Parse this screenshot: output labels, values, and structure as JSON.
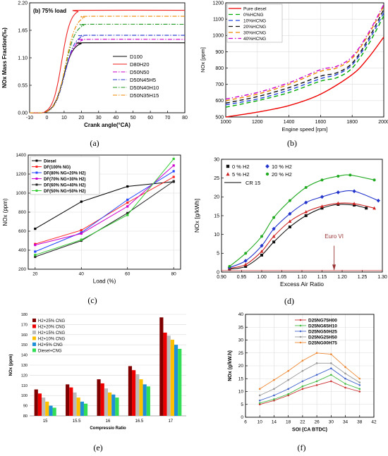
{
  "captions": [
    "(a)",
    "(b)",
    "(c)",
    "(d)",
    "(e)",
    "(f)"
  ],
  "chart_data": [
    {
      "type": "line",
      "title": "(b) 75% load",
      "xlabel": "Crank angle(°CA)",
      "ylabel": "NOx Mass Fraction(‰)",
      "xlim": [
        -10,
        80
      ],
      "ylim": [
        0,
        2.2
      ],
      "xticks": [
        -10,
        0,
        10,
        20,
        30,
        40,
        50,
        60,
        70,
        80
      ],
      "yticks": [
        0.0,
        0.55,
        1.1,
        1.65,
        2.2
      ],
      "legend": "center-right",
      "series": [
        {
          "name": "D100",
          "color": "#000000",
          "dash": "",
          "final": 1.4
        },
        {
          "name": "D80H20",
          "color": "#ee2222",
          "dash": "",
          "final": 2.05
        },
        {
          "name": "D50N50",
          "color": "#cc00cc",
          "dash": "6 2 1.5 2",
          "final": 1.47
        },
        {
          "name": "D50N45H5",
          "color": "#2233cc",
          "dash": "6 2 1.5 2",
          "final": 1.55
        },
        {
          "name": "D50N40H10",
          "color": "#229922",
          "dash": "6 2 1.5 2",
          "final": 1.77
        },
        {
          "name": "D50N35H15",
          "color": "#ee8800",
          "dash": "6 2 1.5 2",
          "final": 1.93
        }
      ]
    },
    {
      "type": "line",
      "xlabel": "Engine speed [rpm]",
      "ylabel": "NOx [ppm]",
      "xlim": [
        1000,
        2000
      ],
      "ylim": [
        500,
        1200
      ],
      "xticks": [
        1000,
        1200,
        1400,
        1600,
        1800,
        2000
      ],
      "yticks": [
        500,
        600,
        700,
        800,
        900,
        1000,
        1100,
        1200
      ],
      "grid": true,
      "legend": "top-left",
      "series": [
        {
          "name": "Pure diesel",
          "color": "#ee0000",
          "dash": "",
          "x": [
            1000,
            1200,
            1400,
            1600,
            1800,
            1900,
            2000
          ],
          "y": [
            500,
            530,
            570,
            640,
            760,
            860,
            990
          ]
        },
        {
          "name": "0%HCNG",
          "color": "#00aa00",
          "dash": "6 4",
          "x": [
            1000,
            1200,
            1400,
            1600,
            1700,
            1800,
            1900,
            2000
          ],
          "y": [
            560,
            600,
            650,
            720,
            740,
            800,
            940,
            1120
          ]
        },
        {
          "name": "10%HCNG",
          "color": "#2244dd",
          "dash": "6 4",
          "x": [
            1000,
            1200,
            1400,
            1600,
            1700,
            1800,
            1900,
            2000
          ],
          "y": [
            575,
            610,
            665,
            735,
            760,
            820,
            960,
            1140
          ]
        },
        {
          "name": "20%HCNG",
          "color": "#111111",
          "dash": "6 4",
          "x": [
            1000,
            1200,
            1400,
            1600,
            1700,
            1800,
            1900,
            2000
          ],
          "y": [
            585,
            625,
            680,
            750,
            770,
            830,
            975,
            1160
          ]
        },
        {
          "name": "30%HCNG",
          "color": "#ee8800",
          "dash": "6 4",
          "x": [
            1000,
            1200,
            1400,
            1600,
            1700,
            1800,
            1900,
            2000
          ],
          "y": [
            600,
            640,
            700,
            780,
            800,
            860,
            1000,
            1180
          ]
        },
        {
          "name": "40%HCNG",
          "color": "#cc00cc",
          "dash": "6 3 1.5 3",
          "x": [
            1000,
            1200,
            1400,
            1600,
            1700,
            1800,
            1900,
            2000
          ],
          "y": [
            610,
            650,
            710,
            790,
            810,
            870,
            1010,
            1190
          ]
        }
      ]
    },
    {
      "type": "line",
      "xlabel": "Load (%)",
      "ylabel": "NOx (ppm)",
      "xlim": [
        17,
        83
      ],
      "ylim": [
        200,
        1400
      ],
      "xticks": [
        20,
        40,
        60,
        80
      ],
      "yticks": [
        200,
        400,
        600,
        800,
        1000,
        1200,
        1400
      ],
      "grid": true,
      "legend": "top-left",
      "series": [
        {
          "name": "Diesel",
          "color": "#000000",
          "x": [
            20,
            40,
            60,
            80
          ],
          "y": [
            625,
            910,
            1070,
            1120
          ]
        },
        {
          "name": "DF(100% NG)",
          "color": "#ff2222",
          "x": [
            20,
            40,
            60,
            80
          ],
          "y": [
            465,
            610,
            900,
            1170
          ]
        },
        {
          "name": "DF(80% NG+20% H2)",
          "color": "#2244ff",
          "x": [
            20,
            40,
            60,
            80
          ],
          "y": [
            385,
            585,
            930,
            1230
          ]
        },
        {
          "name": "DF(70% NG+30% H2)",
          "color": "#cc00cc",
          "x": [
            20,
            40,
            60,
            80
          ],
          "y": [
            455,
            575,
            860,
            1290
          ]
        },
        {
          "name": "DF(60% NG+40% H2)",
          "color": "#222222",
          "x": [
            20,
            40,
            60,
            80
          ],
          "y": [
            330,
            500,
            790,
            1125
          ]
        },
        {
          "name": "DF(50% NG+50% H2)",
          "color": "#33cc33",
          "x": [
            20,
            40,
            60,
            80
          ],
          "y": [
            350,
            510,
            770,
            1360
          ]
        }
      ]
    },
    {
      "type": "line",
      "xlabel": "Excess Air Ratio",
      "ylabel": "NOx [g/kWh]",
      "xlim": [
        0.9,
        1.3
      ],
      "ylim": [
        0,
        30
      ],
      "xticks": [
        0.9,
        0.95,
        1.0,
        1.05,
        1.1,
        1.15,
        1.2,
        1.25,
        1.3
      ],
      "yticks": [
        0,
        5,
        10,
        15,
        20,
        25,
        30
      ],
      "legend": "top-left",
      "annotation": "Euro VI",
      "series": [
        {
          "name": "0 % H2",
          "color": "#111111",
          "marker": "square",
          "x": [
            0.92,
            0.96,
            1.0,
            1.03,
            1.07,
            1.11,
            1.15,
            1.19,
            1.23,
            1.26
          ],
          "y": [
            0.8,
            1.5,
            4.5,
            8.0,
            12.0,
            15.0,
            17.0,
            18.0,
            17.8,
            17.0
          ]
        },
        {
          "name": "5 % H2",
          "color": "#cc2222",
          "marker": "triangle",
          "x": [
            0.92,
            0.96,
            1.0,
            1.03,
            1.07,
            1.11,
            1.15,
            1.19,
            1.23,
            1.28
          ],
          "y": [
            1.0,
            2.0,
            5.5,
            9.5,
            13.5,
            16.0,
            17.5,
            18.3,
            18.2,
            17.0
          ]
        },
        {
          "name": "10 % H2",
          "color": "#2233cc",
          "marker": "diamond",
          "x": [
            0.92,
            0.96,
            1.0,
            1.03,
            1.07,
            1.11,
            1.15,
            1.19,
            1.23,
            1.29
          ],
          "y": [
            1.2,
            3.0,
            7.0,
            11.5,
            15.5,
            18.5,
            20.0,
            21.2,
            21.5,
            19.0
          ]
        },
        {
          "name": "20 % H2",
          "color": "#22aa22",
          "marker": "circle",
          "x": [
            0.92,
            0.96,
            1.0,
            1.03,
            1.07,
            1.11,
            1.15,
            1.19,
            1.22,
            1.28
          ],
          "y": [
            1.5,
            5.0,
            9.5,
            14.5,
            19.0,
            22.5,
            24.5,
            25.5,
            25.8,
            24.5
          ]
        },
        {
          "name": "CR 15",
          "color": "#000000",
          "marker": "none",
          "x": [],
          "y": []
        }
      ]
    },
    {
      "type": "bar",
      "xlabel": "Compressio Ratio",
      "ylabel": "NOx (ppm)",
      "ylim": [
        80,
        180
      ],
      "yticks": [
        80,
        90,
        100,
        110,
        120,
        130,
        140,
        150,
        160,
        170,
        180
      ],
      "grid": true,
      "legend": "top-left",
      "categories": [
        "15",
        "15.5",
        "16",
        "16.5",
        "17"
      ],
      "series": [
        {
          "name": "H2+25% CNG",
          "color": "#800000",
          "values": [
            106,
            111,
            116,
            129,
            177
          ]
        },
        {
          "name": "H2+20% CNG",
          "color": "#ee0000",
          "values": [
            102,
            108,
            112,
            125,
            162
          ]
        },
        {
          "name": "H2+15% CNG",
          "color": "#bbbbbb",
          "values": [
            98,
            103,
            107,
            121,
            159
          ]
        },
        {
          "name": "H2+10% CNG",
          "color": "#ffc000",
          "values": [
            94,
            98,
            103,
            116,
            155
          ]
        },
        {
          "name": "H2+5% CNG",
          "color": "#1f8fd8",
          "values": [
            90,
            94,
            101,
            111,
            150
          ]
        },
        {
          "name": "Diesel+CNG",
          "color": "#33dd55",
          "values": [
            88,
            92,
            98,
            109,
            146
          ]
        }
      ]
    },
    {
      "type": "line",
      "xlabel": "SOI (CA BTDC)",
      "ylabel": "NOx (g/kW.h)",
      "xlim": [
        6,
        42
      ],
      "ylim": [
        0,
        40
      ],
      "xticks": [
        6,
        10,
        14,
        18,
        22,
        26,
        30,
        34,
        38,
        42
      ],
      "yticks": [
        0,
        5,
        10,
        15,
        20,
        25,
        30,
        35,
        40
      ],
      "grid": true,
      "legend": "top-right",
      "series": [
        {
          "name": "D25NG75H00",
          "color": "#cc3333",
          "x": [
            10,
            14,
            18,
            22,
            26,
            30,
            34,
            38
          ],
          "y": [
            5.0,
            6.5,
            8.5,
            11.0,
            12.5,
            14.0,
            11.5,
            10.0
          ]
        },
        {
          "name": "D25NG65H10",
          "color": "#44bb44",
          "x": [
            10,
            14,
            18,
            22,
            26,
            30,
            34,
            38
          ],
          "y": [
            5.5,
            7.0,
            9.0,
            12.0,
            14.0,
            16.5,
            13.0,
            11.0
          ]
        },
        {
          "name": "D25NG50H25",
          "color": "#4466cc",
          "x": [
            10,
            14,
            18,
            22,
            26,
            30,
            34,
            38
          ],
          "y": [
            6.5,
            8.5,
            11.0,
            14.0,
            16.5,
            19.0,
            15.0,
            12.5
          ]
        },
        {
          "name": "D25NG25H50",
          "color": "#999999",
          "x": [
            10,
            14,
            18,
            22,
            26,
            30,
            34,
            38
          ],
          "y": [
            8.5,
            11.0,
            14.5,
            18.0,
            21.0,
            21.0,
            17.0,
            13.5
          ]
        },
        {
          "name": "D25NG00H75",
          "color": "#ee8833",
          "x": [
            10,
            14,
            18,
            22,
            26,
            30,
            34,
            38
          ],
          "y": [
            11.0,
            14.5,
            18.0,
            22.0,
            25.0,
            24.5,
            19.5,
            15.0
          ]
        }
      ]
    }
  ]
}
